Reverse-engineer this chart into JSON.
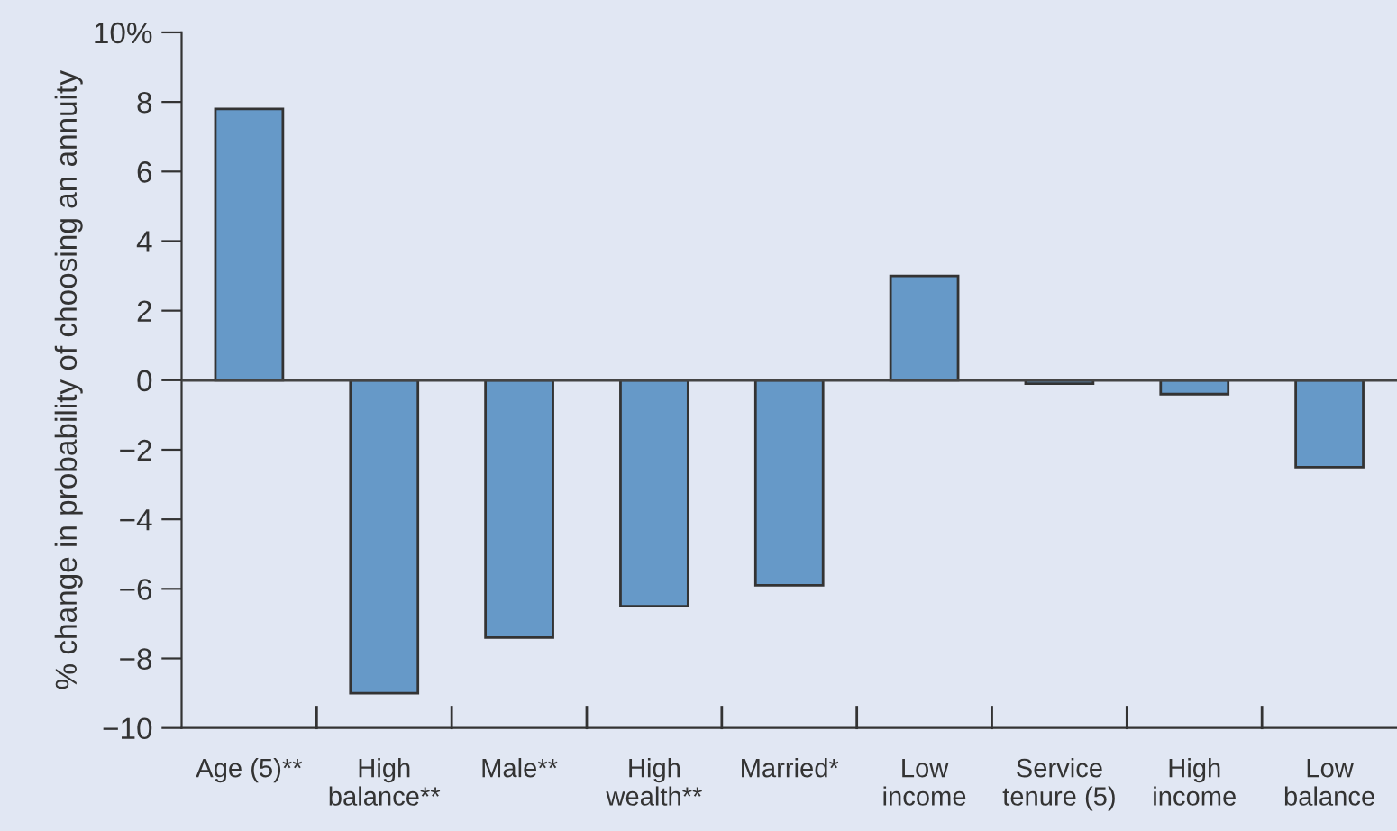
{
  "chart_data": {
    "type": "bar",
    "ylabel": "% change in probability of choosing an annuity",
    "categories": [
      "Age (5)**",
      "High\nbalance**",
      "Male**",
      "High\nwealth**",
      "Married*",
      "Low\nincome",
      "Service\ntenure (5)",
      "High\nincome",
      "Low\nbalance"
    ],
    "values": [
      7.8,
      -9.0,
      -7.4,
      -6.5,
      -5.9,
      3.0,
      -0.1,
      -0.4,
      -2.5
    ],
    "color": "#6699c8",
    "ylim": [
      -10,
      10
    ],
    "yticks": [
      {
        "value": -10,
        "label": "−10"
      },
      {
        "value": -8,
        "label": "−8"
      },
      {
        "value": -6,
        "label": "−6"
      },
      {
        "value": -4,
        "label": "−4"
      },
      {
        "value": -2,
        "label": "−2"
      },
      0,
      2,
      4,
      6,
      8,
      {
        "value": 10,
        "label": "10%"
      }
    ],
    "ref_lines": [
      {
        "axis": "y",
        "value": 0,
        "label": null,
        "color": "#444444"
      }
    ],
    "grid": false,
    "legend": false
  }
}
